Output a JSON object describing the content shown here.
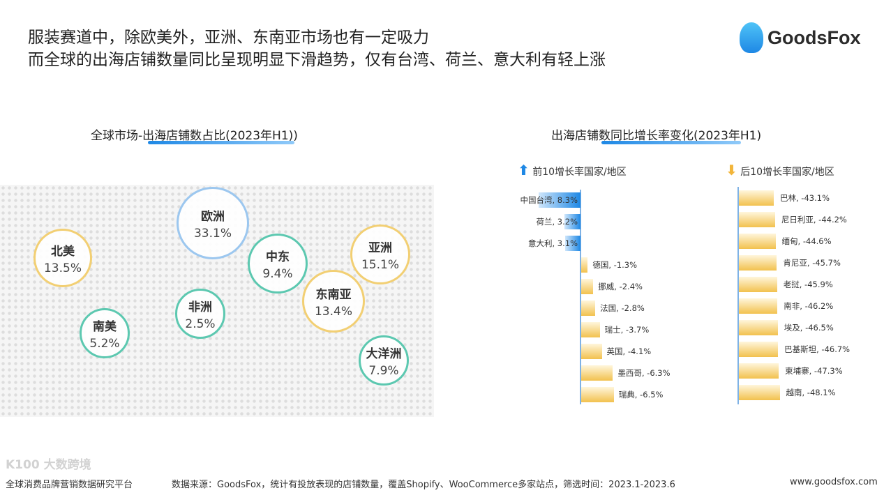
{
  "header": {
    "title_line1": "服装赛道中，除欧美外，亚洲、东南亚市场也有一定吸力",
    "title_line2": "而全球的出海店铺数量同比呈现明显下滑趋势，仅有台湾、荷兰、意大利有轻上涨",
    "logo": "GoodsFox"
  },
  "map_section": {
    "title": "全球市场-出海店铺数占比(2023年H1))",
    "regions": [
      {
        "name": "欧洲",
        "value": "33.1%",
        "color": "#9cc7ef"
      },
      {
        "name": "北美",
        "value": "13.5%",
        "color": "#f2cf73"
      },
      {
        "name": "中东",
        "value": "9.4%",
        "color": "#5cc8b0"
      },
      {
        "name": "亚洲",
        "value": "15.1%",
        "color": "#f2cf73"
      },
      {
        "name": "非洲",
        "value": "2.5%",
        "color": "#5cc8b0"
      },
      {
        "name": "东南亚",
        "value": "13.4%",
        "color": "#f2cf73"
      },
      {
        "name": "南美",
        "value": "5.2%",
        "color": "#5cc8b0"
      },
      {
        "name": "大洋洲",
        "value": "7.9%",
        "color": "#5cc8b0"
      }
    ]
  },
  "chart_data": [
    {
      "type": "bar",
      "orientation": "horizontal",
      "title": "出海店铺数同比增长率变化(2023年H1)",
      "subtitle": "前10增长率国家/地区",
      "categories": [
        "中国台湾",
        "荷兰",
        "意大利",
        "德国",
        "挪威",
        "法国",
        "瑞士",
        "英国",
        "墨西哥",
        "瑞典"
      ],
      "values": [
        8.3,
        3.2,
        3.1,
        -1.3,
        -2.4,
        -2.8,
        -3.7,
        -4.1,
        -6.3,
        -6.5
      ],
      "unit": "%",
      "colors": {
        "positive": "#1e88e5",
        "negative": "#f2c14e"
      }
    },
    {
      "type": "bar",
      "orientation": "horizontal",
      "subtitle": "后10增长率国家/地区",
      "categories": [
        "巴林",
        "尼日利亚",
        "缅甸",
        "肯尼亚",
        "老挝",
        "南非",
        "埃及",
        "巴基斯坦",
        "柬埔寨",
        "越南"
      ],
      "values": [
        -43.1,
        -44.2,
        -44.6,
        -45.7,
        -45.9,
        -46.2,
        -46.5,
        -46.7,
        -47.3,
        -48.1
      ],
      "unit": "%",
      "colors": {
        "negative": "#f2c14e"
      }
    }
  ],
  "footer": {
    "left": "全球消费品牌营销数据研究平台",
    "watermark": "K100 大数跨境",
    "source": "数据来源：GoodsFox，统计有投放表现的店铺数量，覆盖Shopify、WooCommerce多家站点，筛选时间：2023.1-2023.6",
    "url": "www.goodsfox.com"
  }
}
